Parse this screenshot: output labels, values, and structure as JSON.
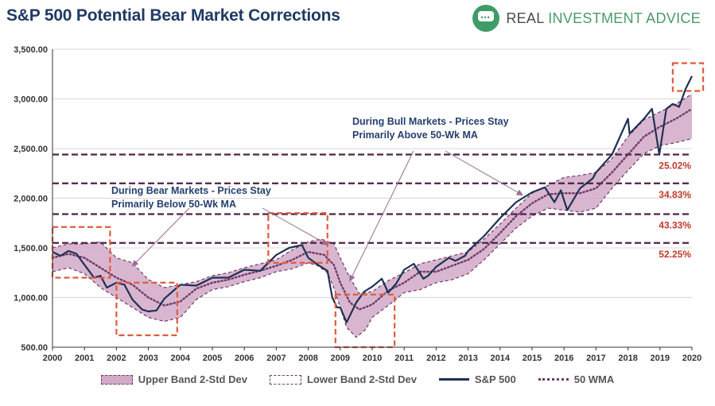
{
  "header": {
    "title": "S&P 500 Potential Bear Market Corrections",
    "brand_part1": "REAL ",
    "brand_part2": "INVESTMENT ADVICE"
  },
  "colors": {
    "band_fill": "#d2a9c7",
    "band_edge": "#6e3a6a",
    "sp500_line": "#1e3154",
    "wma_line": "#6e3a6a",
    "level_line": "#4b2347",
    "highlight_box": "#e05a3c",
    "level_label": "#c0392b",
    "annotation": "#243f6e"
  },
  "legend": {
    "upper_band": "Upper Band 2-Std Dev",
    "lower_band": "Lower Band 2-Std Dev",
    "sp500": "S&P 500",
    "wma": "50 WMA"
  },
  "chart_data": {
    "type": "line",
    "title": "S&P 500 Potential Bear Market Corrections",
    "xlabel": "",
    "ylabel": "",
    "xlim": [
      2000,
      2020
    ],
    "ylim": [
      500,
      3500
    ],
    "x_ticks": [
      "2000",
      "2001",
      "2002",
      "2003",
      "2004",
      "2005",
      "2006",
      "2007",
      "2008",
      "2009",
      "2010",
      "2011",
      "2012",
      "2013",
      "2014",
      "2015",
      "2016",
      "2017",
      "2018",
      "2019",
      "2020"
    ],
    "y_ticks": [
      500,
      1000,
      1500,
      2000,
      2500,
      3000,
      3500
    ],
    "y_tick_labels": [
      "500.00",
      "1,000.00",
      "1,500.00",
      "2,000.00",
      "2,500.00",
      "3,000.00",
      "3,500.00"
    ],
    "series": [
      {
        "name": "S&P 500",
        "x": [
          2000.0,
          2000.25,
          2000.5,
          2000.75,
          2001.0,
          2001.3,
          2001.5,
          2001.7,
          2002.0,
          2002.25,
          2002.5,
          2002.8,
          2003.0,
          2003.25,
          2003.5,
          2004.0,
          2004.5,
          2005.0,
          2005.5,
          2006.0,
          2006.5,
          2007.0,
          2007.4,
          2007.8,
          2008.0,
          2008.3,
          2008.6,
          2008.75,
          2008.9,
          2009.0,
          2009.2,
          2009.5,
          2009.75,
          2010.0,
          2010.3,
          2010.5,
          2010.75,
          2011.0,
          2011.3,
          2011.6,
          2011.75,
          2012.0,
          2012.4,
          2012.6,
          2012.9,
          2013.0,
          2013.5,
          2014.0,
          2014.5,
          2015.0,
          2015.4,
          2015.7,
          2015.9,
          2016.1,
          2016.5,
          2016.9,
          2017.0,
          2017.5,
          2018.0,
          2018.05,
          2018.2,
          2018.5,
          2018.75,
          2018.98,
          2019.2,
          2019.4,
          2019.6,
          2019.8,
          2020.0
        ],
        "values": [
          1460,
          1420,
          1470,
          1440,
          1330,
          1200,
          1220,
          1100,
          1150,
          1130,
          980,
          880,
          860,
          870,
          990,
          1130,
          1120,
          1200,
          1200,
          1280,
          1270,
          1430,
          1500,
          1530,
          1400,
          1330,
          1270,
          1000,
          900,
          900,
          750,
          950,
          1060,
          1110,
          1190,
          1050,
          1140,
          1280,
          1340,
          1190,
          1220,
          1310,
          1400,
          1370,
          1420,
          1470,
          1620,
          1800,
          1960,
          2060,
          2110,
          1960,
          2080,
          1880,
          2100,
          2200,
          2260,
          2440,
          2800,
          2650,
          2700,
          2800,
          2900,
          2440,
          2900,
          2950,
          2920,
          3100,
          3230
        ]
      },
      {
        "name": "50 WMA",
        "x": [
          2000.0,
          2000.5,
          2001.0,
          2001.5,
          2002.0,
          2002.5,
          2003.0,
          2003.5,
          2004.0,
          2004.5,
          2005.0,
          2005.5,
          2006.0,
          2006.5,
          2007.0,
          2007.5,
          2008.0,
          2008.5,
          2008.8,
          2009.0,
          2009.3,
          2009.6,
          2010.0,
          2010.5,
          2011.0,
          2011.5,
          2012.0,
          2012.5,
          2013.0,
          2013.5,
          2014.0,
          2014.5,
          2015.0,
          2015.5,
          2016.0,
          2016.5,
          2017.0,
          2017.5,
          2018.0,
          2018.5,
          2019.0,
          2019.5,
          2020.0
        ],
        "values": [
          1400,
          1440,
          1400,
          1300,
          1200,
          1130,
          1000,
          920,
          960,
          1090,
          1150,
          1180,
          1230,
          1270,
          1320,
          1380,
          1460,
          1430,
          1330,
          1150,
          950,
          880,
          930,
          1070,
          1150,
          1260,
          1260,
          1320,
          1380,
          1490,
          1650,
          1820,
          1950,
          2040,
          2050,
          2050,
          2100,
          2260,
          2440,
          2620,
          2720,
          2800,
          2900
        ]
      },
      {
        "name": "Upper Band 2-Std Dev",
        "x": [
          2000.0,
          2000.5,
          2001.0,
          2001.5,
          2002.0,
          2002.5,
          2003.0,
          2003.5,
          2004.0,
          2004.5,
          2005.0,
          2005.5,
          2006.0,
          2006.5,
          2007.0,
          2007.5,
          2008.0,
          2008.4,
          2008.8,
          2009.0,
          2009.3,
          2009.6,
          2010.0,
          2010.5,
          2011.0,
          2011.5,
          2012.0,
          2012.5,
          2013.0,
          2013.5,
          2014.0,
          2014.5,
          2015.0,
          2015.5,
          2016.0,
          2016.5,
          2017.0,
          2017.5,
          2018.0,
          2018.5,
          2019.0,
          2019.5,
          2020.0
        ],
        "values": [
          1500,
          1540,
          1540,
          1560,
          1400,
          1350,
          1180,
          1100,
          1130,
          1160,
          1220,
          1250,
          1300,
          1340,
          1380,
          1480,
          1560,
          1590,
          1540,
          1400,
          1200,
          1040,
          1060,
          1170,
          1250,
          1340,
          1380,
          1420,
          1460,
          1590,
          1740,
          1900,
          2050,
          2130,
          2210,
          2230,
          2260,
          2400,
          2620,
          2790,
          2870,
          2950,
          3050
        ]
      },
      {
        "name": "Lower Band 2-Std Dev",
        "x": [
          2000.0,
          2000.5,
          2001.0,
          2001.5,
          2002.0,
          2002.5,
          2003.0,
          2003.5,
          2004.0,
          2004.5,
          2005.0,
          2005.5,
          2006.0,
          2006.5,
          2007.0,
          2007.5,
          2008.0,
          2008.3,
          2008.6,
          2008.8,
          2009.0,
          2009.2,
          2009.5,
          2009.8,
          2010.0,
          2010.5,
          2011.0,
          2011.5,
          2012.0,
          2012.5,
          2013.0,
          2013.5,
          2014.0,
          2014.5,
          2015.0,
          2015.5,
          2016.0,
          2016.5,
          2017.0,
          2017.5,
          2018.0,
          2018.5,
          2019.0,
          2019.5,
          2020.0
        ],
        "values": [
          1260,
          1300,
          1240,
          1100,
          1000,
          900,
          800,
          760,
          800,
          980,
          1080,
          1110,
          1160,
          1200,
          1260,
          1290,
          1350,
          1320,
          1250,
          1100,
          900,
          700,
          600,
          680,
          800,
          920,
          1050,
          1080,
          1150,
          1180,
          1240,
          1380,
          1540,
          1700,
          1820,
          1900,
          1880,
          1860,
          1900,
          2100,
          2280,
          2450,
          2530,
          2560,
          2600
        ]
      }
    ],
    "levels": [
      {
        "value": 2440,
        "label": "25.02%"
      },
      {
        "value": 2150,
        "label": "34.83%"
      },
      {
        "value": 1840,
        "label": "43.33%"
      },
      {
        "value": 1550,
        "label": "52.25%"
      }
    ],
    "highlights": [
      {
        "x0": 2000.0,
        "x1": 2001.8,
        "y0": 1200,
        "y1": 1710
      },
      {
        "x0": 2002.0,
        "x1": 2003.9,
        "y0": 620,
        "y1": 1150
      },
      {
        "x0": 2006.75,
        "x1": 2008.6,
        "y0": 1350,
        "y1": 1850
      },
      {
        "x0": 2008.85,
        "x1": 2010.7,
        "y0": 500,
        "y1": 1030
      },
      {
        "x0": 2019.4,
        "x1": 2020.35,
        "y0": 3080,
        "y1": 3360
      }
    ],
    "annotations": [
      {
        "lines": [
          "During Bear Markets - Prices Stay",
          "Primarily Below 50-Wk MA"
        ]
      },
      {
        "lines": [
          "During Bull Markets - Prices Stay",
          "Primarily Above 50-Wk MA"
        ]
      }
    ]
  }
}
